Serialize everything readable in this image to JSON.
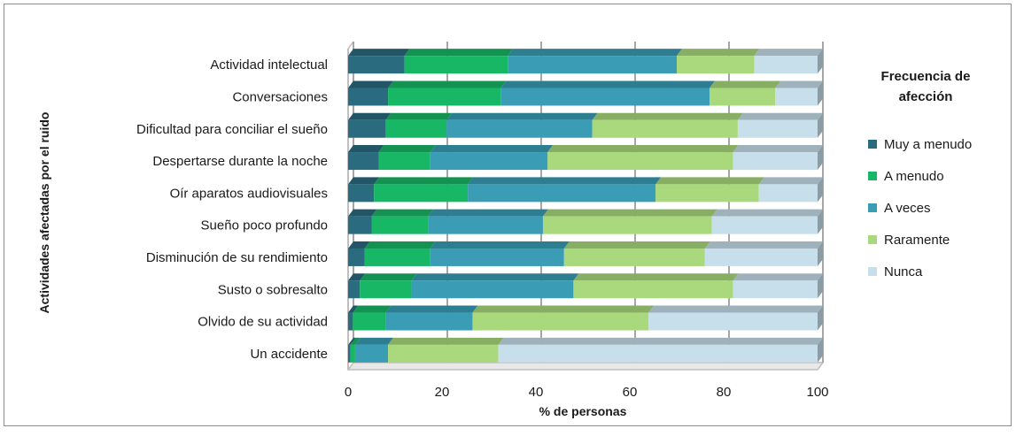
{
  "chart_data": {
    "type": "bar",
    "orientation": "horizontal",
    "stacked": true,
    "title": "",
    "xlabel": "% de personas",
    "ylabel": "Actividades afectadas por el ruido",
    "xlim": [
      0,
      100
    ],
    "xticks": [
      "0",
      "20",
      "40",
      "60",
      "80",
      "100"
    ],
    "grid": true,
    "legend_position": "right",
    "legend_title_lines": [
      "Frecuencia de",
      "afección"
    ],
    "categories": [
      "Actividad intelectual",
      "Conversaciones",
      "Dificultad para conciliar el sueño",
      "Despertarse durante la noche",
      "Oír aparatos audiovisuales",
      "Sueño poco profundo",
      "Disminución de su rendimiento",
      "Susto o sobresalto",
      "Olvido de su actividad",
      "Un accidente"
    ],
    "series": [
      {
        "name": "Muy a menudo",
        "color": "#2a6b80",
        "values": [
          12,
          8.5,
          8,
          6.5,
          5.5,
          5,
          3.5,
          2.5,
          1,
          0.5
        ]
      },
      {
        "name": "A menudo",
        "color": "#18b766",
        "values": [
          22,
          24,
          13,
          11,
          20,
          12,
          14,
          11,
          7,
          1
        ]
      },
      {
        "name": "A veces",
        "color": "#3a9db5",
        "values": [
          36,
          44.5,
          31,
          25,
          40,
          24.5,
          28.5,
          34.5,
          18.5,
          7
        ]
      },
      {
        "name": "Raramente",
        "color": "#a9d97c",
        "values": [
          16.5,
          14,
          31,
          39.5,
          22,
          36,
          30,
          34,
          37.5,
          23.5
        ]
      },
      {
        "name": "Nunca",
        "color": "#c7dfea",
        "values": [
          13.5,
          9,
          17,
          18,
          12.5,
          22.5,
          24,
          18,
          36,
          68
        ]
      }
    ]
  }
}
